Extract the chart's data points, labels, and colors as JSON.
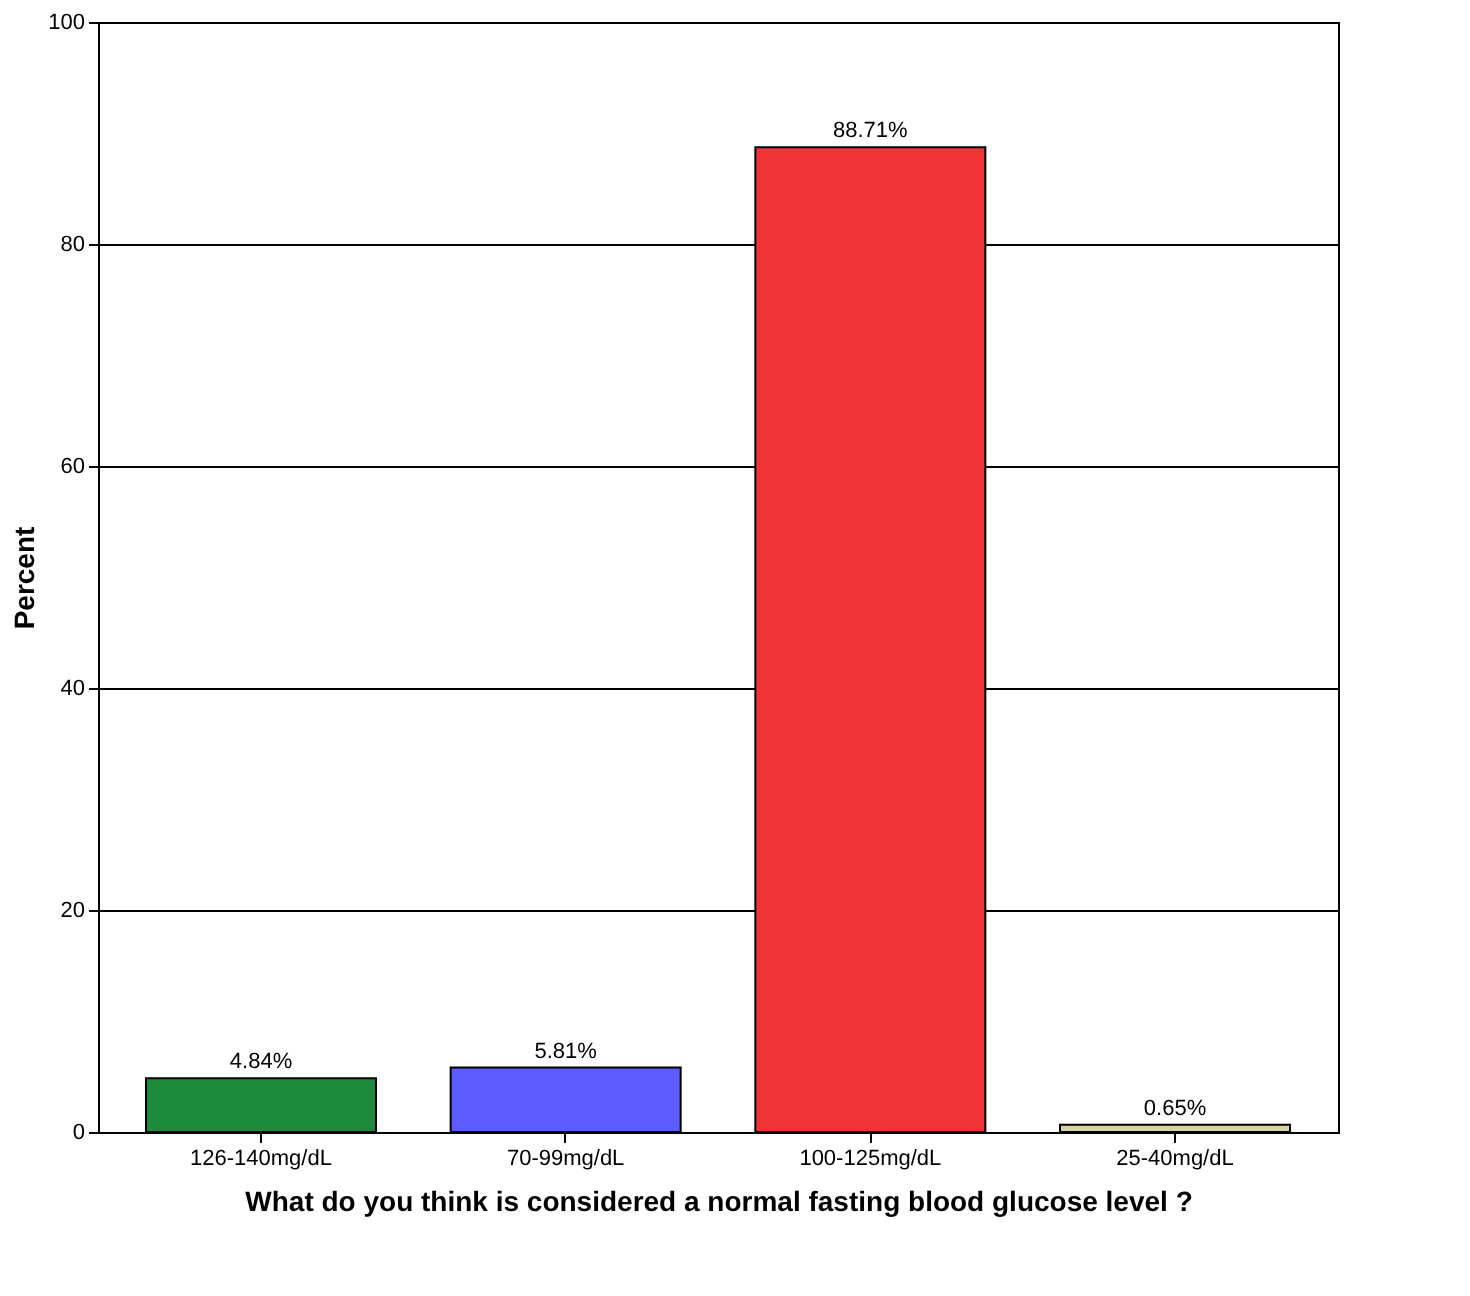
{
  "chart_data": {
    "type": "bar",
    "xlabel": "What do you think is considered a normal fasting blood glucose level ?",
    "ylabel": "Percent",
    "categories": [
      "126-140mg/dL",
      "70-99mg/dL",
      "100-125mg/dL",
      "25-40mg/dL"
    ],
    "values": [
      4.84,
      5.81,
      88.71,
      0.65
    ],
    "colors": [
      "#1e8a3e",
      "#5b5bff",
      "#ef3438",
      "#d6d4a2"
    ],
    "value_labels": [
      "4.84%",
      "5.81%",
      "88.71%",
      "0.65%"
    ],
    "ylim": [
      0,
      100
    ],
    "yticks": [
      0,
      20,
      40,
      60,
      80,
      100
    ],
    "grid": "y"
  }
}
